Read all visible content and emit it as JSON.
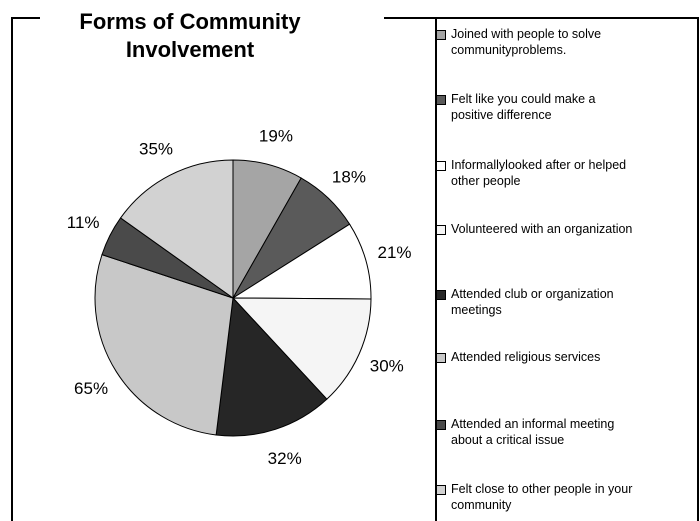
{
  "chart_data": {
    "type": "pie",
    "title_lines": [
      "Forms of Community",
      "Involvement"
    ],
    "categories": [
      "Joined with people to solve communityproblems.",
      "Felt like you could make a positive difference",
      "Informallylooked after or helped other people",
      "Volunteered with an organization",
      "Attended club or organization meetings",
      "Attended religious services",
      "Attended an informal meeting about a critical issue",
      "Felt close to other people in your community"
    ],
    "legend_lines": [
      [
        "Joined with people to solve",
        "communityproblems."
      ],
      [
        "Felt like you could make a",
        "positive difference"
      ],
      [
        "Informallylooked after or helped",
        "other people"
      ],
      [
        "Volunteered with an organization"
      ],
      [
        "Attended club or organization",
        "meetings"
      ],
      [
        "Attended religious services"
      ],
      [
        "Attended an informal meeting",
        "about a critical issue"
      ],
      [
        "Felt close to other people in your",
        "community"
      ]
    ],
    "values": [
      19,
      18,
      21,
      30,
      32,
      65,
      11,
      35
    ],
    "value_labels": [
      "19%",
      "18%",
      "21%",
      "30%",
      "32%",
      "65%",
      "11%",
      "35%"
    ],
    "colors": [
      "#a5a5a5",
      "#5a5a5a",
      "#ffffff",
      "#f5f5f5",
      "#262626",
      "#c8c8c8",
      "#4a4a4a",
      "#d2d2d2"
    ],
    "start_angle_deg": 0,
    "direction": "clockwise",
    "legend_position": "right"
  }
}
